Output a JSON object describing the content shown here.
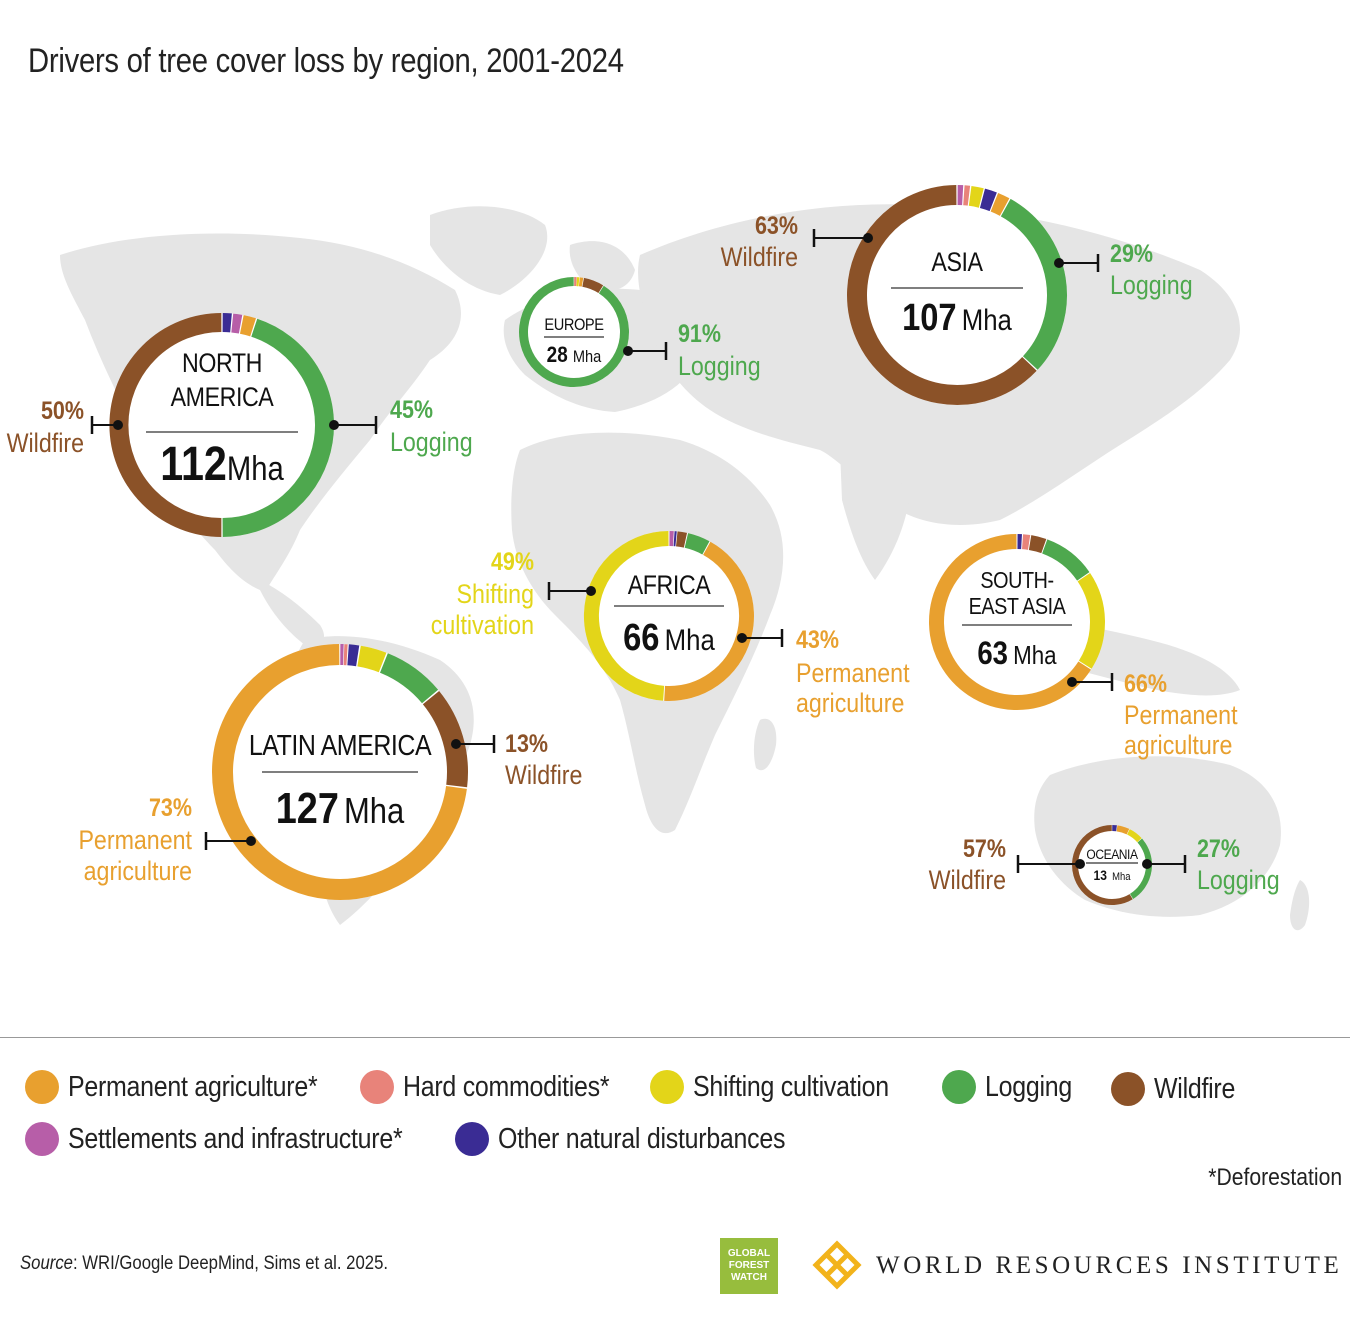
{
  "title": "Drivers of tree cover loss by region, 2001-2024",
  "colors": {
    "permanent_agriculture": "#e8a02f",
    "hard_commodities": "#e8837a",
    "shifting_cultivation": "#e3d519",
    "logging": "#4ea84e",
    "wildfire": "#8b5228",
    "settlements_infrastructure": "#b75ea8",
    "other_natural_disturbances": "#3a2c94",
    "map_land": "#e5e5e5"
  },
  "legend": {
    "items": [
      {
        "key": "permanent_agriculture",
        "label": "Permanent agriculture*"
      },
      {
        "key": "hard_commodities",
        "label": "Hard commodities*"
      },
      {
        "key": "shifting_cultivation",
        "label": "Shifting cultivation"
      },
      {
        "key": "logging",
        "label": "Logging"
      },
      {
        "key": "wildfire",
        "label": "Wildfire"
      },
      {
        "key": "settlements_infrastructure",
        "label": "Settlements and infrastructure*"
      },
      {
        "key": "other_natural_disturbances",
        "label": "Other natural disturbances"
      }
    ]
  },
  "footnote": "*Deforestation",
  "source": {
    "prefix": "Source",
    "text": ": WRI/Google DeepMind, Sims et al. 2025."
  },
  "logos": {
    "gfw_lines": [
      "GLOBAL",
      "FOREST",
      "WATCH"
    ],
    "wri_name": "WORLD RESOURCES INSTITUTE"
  },
  "chart_data": {
    "type": "donut",
    "title": "Drivers of tree cover loss by region, 2001-2024",
    "unit": "Mha",
    "drivers": [
      "permanent_agriculture",
      "hard_commodities",
      "shifting_cultivation",
      "logging",
      "wildfire",
      "settlements_infrastructure",
      "other_natural_disturbances"
    ],
    "regions": [
      {
        "id": "north_america",
        "name_lines": [
          "NORTH",
          "AMERICA"
        ],
        "total": 112,
        "total_label": "112",
        "unit_label": "Mha",
        "shares": {
          "settlements_infrastructure": 1.5,
          "other_natural_disturbances": 1.5,
          "permanent_agriculture": 2,
          "logging": 45,
          "wildfire": 50
        },
        "order": [
          "other_natural_disturbances",
          "settlements_infrastructure",
          "permanent_agriculture",
          "logging",
          "wildfire"
        ],
        "callouts": [
          {
            "driver": "logging",
            "percent": "45%",
            "label_lines": [
              "Logging"
            ]
          },
          {
            "driver": "wildfire",
            "percent": "50%",
            "label_lines": [
              "Wildfire"
            ]
          }
        ]
      },
      {
        "id": "europe",
        "name_lines": [
          "EUROPE"
        ],
        "total": 28,
        "total_label": "28",
        "unit_label": "Mha",
        "shares": {
          "hard_commodities": 0.8,
          "shifting_cultivation": 0.8,
          "permanent_agriculture": 1.2,
          "wildfire": 6.2,
          "logging": 91
        },
        "order": [
          "hard_commodities",
          "shifting_cultivation",
          "permanent_agriculture",
          "wildfire",
          "logging"
        ],
        "callouts": [
          {
            "driver": "logging",
            "percent": "91%",
            "label_lines": [
              "Logging"
            ]
          }
        ]
      },
      {
        "id": "asia",
        "name_lines": [
          "ASIA"
        ],
        "total": 107,
        "total_label": "107",
        "unit_label": "Mha",
        "shares": {
          "settlements_infrastructure": 1,
          "hard_commodities": 1,
          "shifting_cultivation": 2,
          "other_natural_disturbances": 2,
          "permanent_agriculture": 2,
          "logging": 29,
          "wildfire": 63
        },
        "order": [
          "settlements_infrastructure",
          "hard_commodities",
          "shifting_cultivation",
          "other_natural_disturbances",
          "permanent_agriculture",
          "logging",
          "wildfire"
        ],
        "callouts": [
          {
            "driver": "logging",
            "percent": "29%",
            "label_lines": [
              "Logging"
            ]
          },
          {
            "driver": "wildfire",
            "percent": "63%",
            "label_lines": [
              "Wildfire"
            ]
          }
        ]
      },
      {
        "id": "africa",
        "name_lines": [
          "AFRICA"
        ],
        "total": 66,
        "total_label": "66",
        "unit_label": "Mha",
        "shares": {
          "settlements_infrastructure": 1,
          "other_natural_disturbances": 0.5,
          "wildfire": 2,
          "logging": 4.5,
          "permanent_agriculture": 43,
          "shifting_cultivation": 49
        },
        "order": [
          "settlements_infrastructure",
          "other_natural_disturbances",
          "wildfire",
          "logging",
          "permanent_agriculture",
          "shifting_cultivation"
        ],
        "callouts": [
          {
            "driver": "shifting_cultivation",
            "percent": "49%",
            "label_lines": [
              "Shifting",
              "cultivation"
            ]
          },
          {
            "driver": "permanent_agriculture",
            "percent": "43%",
            "label_lines": [
              "Permanent",
              "agriculture"
            ]
          }
        ]
      },
      {
        "id": "southeast_asia",
        "name_lines": [
          "SOUTH-",
          "EAST ASIA"
        ],
        "total": 63,
        "total_label": "63",
        "unit_label": "Mha",
        "shares": {
          "other_natural_disturbances": 1,
          "hard_commodities": 1.5,
          "wildfire": 3,
          "logging": 10,
          "shifting_cultivation": 18.5,
          "permanent_agriculture": 66
        },
        "order": [
          "other_natural_disturbances",
          "hard_commodities",
          "wildfire",
          "logging",
          "shifting_cultivation",
          "permanent_agriculture"
        ],
        "callouts": [
          {
            "driver": "permanent_agriculture",
            "percent": "66%",
            "label_lines": [
              "Permanent",
              "agriculture"
            ]
          }
        ]
      },
      {
        "id": "latin_america",
        "name_lines": [
          "LATIN AMERICA"
        ],
        "total": 127,
        "total_label": "127",
        "unit_label": "Mha",
        "shares": {
          "settlements_infrastructure": 0.5,
          "hard_commodities": 0.5,
          "other_natural_disturbances": 1.5,
          "shifting_cultivation": 3.5,
          "logging": 8,
          "wildfire": 13,
          "permanent_agriculture": 73
        },
        "order": [
          "settlements_infrastructure",
          "hard_commodities",
          "other_natural_disturbances",
          "shifting_cultivation",
          "logging",
          "wildfire",
          "permanent_agriculture"
        ],
        "callouts": [
          {
            "driver": "wildfire",
            "percent": "13%",
            "label_lines": [
              "Wildfire"
            ]
          },
          {
            "driver": "permanent_agriculture",
            "percent": "73%",
            "label_lines": [
              "Permanent",
              "agriculture"
            ]
          }
        ]
      },
      {
        "id": "oceania",
        "name_lines": [
          "OCEANIA"
        ],
        "total": 13,
        "total_label": "13",
        "unit_label": "Mha",
        "shares": {
          "other_natural_disturbances": 2,
          "permanent_agriculture": 5,
          "shifting_cultivation": 6,
          "logging": 27,
          "hard_commodities": 2,
          "wildfire": 57
        },
        "order": [
          "other_natural_disturbances",
          "permanent_agriculture",
          "shifting_cultivation",
          "logging",
          "wildfire"
        ],
        "callouts": [
          {
            "driver": "logging",
            "percent": "27%",
            "label_lines": [
              "Logging"
            ]
          },
          {
            "driver": "wildfire",
            "percent": "57%",
            "label_lines": [
              "Wildfire"
            ]
          }
        ]
      }
    ]
  }
}
